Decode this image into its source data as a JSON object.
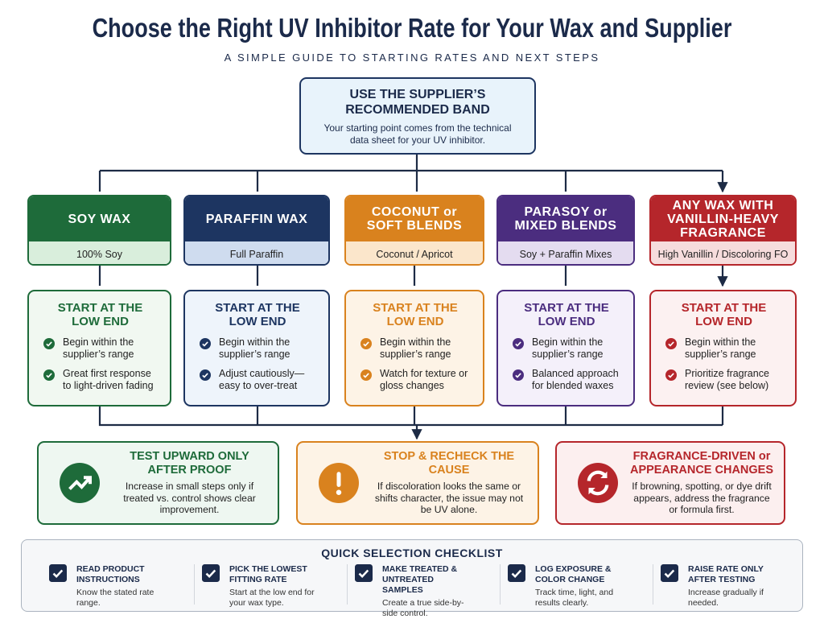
{
  "header": {
    "title": "Choose the Right UV Inhibitor Rate for Your Wax and Supplier",
    "subtitle": "A SIMPLE GUIDE TO STARTING RATES AND NEXT STEPS"
  },
  "top": {
    "title": "USE THE SUPPLIER’S RECOMMENDED BAND",
    "text": "Your starting point comes from the technical data sheet for your UV inhibitor."
  },
  "columns": [
    {
      "title": "SOY WAX",
      "subtitle": "100% Soy",
      "step_title": "START AT THE LOW END",
      "points": [
        "Begin within the supplier’s range",
        "Great first response to light-driven fading"
      ]
    },
    {
      "title": "PARAFFIN WAX",
      "subtitle": "Full Paraffin",
      "step_title": "START AT THE LOW END",
      "points": [
        "Begin within the supplier’s range",
        "Adjust cautiously—easy to over-treat"
      ]
    },
    {
      "title": "COCONUT or SOFT BLENDS",
      "subtitle": "Coconut / Apricot",
      "step_title": "START AT THE LOW END",
      "points": [
        "Begin within the supplier’s range",
        "Watch for texture or gloss changes"
      ]
    },
    {
      "title": "PARASOY or MIXED BLENDS",
      "subtitle": "Soy + Paraffin Mixes",
      "step_title": "START AT THE LOW END",
      "points": [
        "Begin within the supplier’s range",
        "Balanced approach for blended waxes"
      ]
    },
    {
      "title": "ANY WAX WITH VANILLIN-HEAVY FRAGRANCE",
      "subtitle": "High Vanillin / Discoloring FO",
      "step_title": "START AT THE LOW END",
      "points": [
        "Begin within the supplier’s range",
        "Prioritize fragrance review (see below)"
      ]
    }
  ],
  "outcomes": [
    {
      "title": "TEST UPWARD ONLY AFTER PROOF",
      "text": "Increase in small steps only if treated vs. control shows clear improvement."
    },
    {
      "title": "STOP & RECHECK THE CAUSE",
      "text": "If discoloration looks the same or shifts character, the issue may not be UV alone."
    },
    {
      "title": "FRAGRANCE-DRIVEN or APPEARANCE CHANGES",
      "text": "If browning, spotting, or dye drift appears, address the fragrance or formula first."
    }
  ],
  "checklist": {
    "title": "QUICK SELECTION CHECKLIST",
    "items": [
      {
        "title": "READ PRODUCT INSTRUCTIONS",
        "text": "Know the stated rate range."
      },
      {
        "title": "PICK THE LOWEST FITTING RATE",
        "text": "Start at the low end for your wax type."
      },
      {
        "title": "MAKE TREATED & UNTREATED SAMPLES",
        "text": "Create a true side-by-side control."
      },
      {
        "title": "LOG EXPOSURE & COLOR CHANGE",
        "text": "Track time, light, and results clearly."
      },
      {
        "title": "RAISE RATE ONLY AFTER TESTING",
        "text": "Increase gradually if needed."
      }
    ]
  }
}
